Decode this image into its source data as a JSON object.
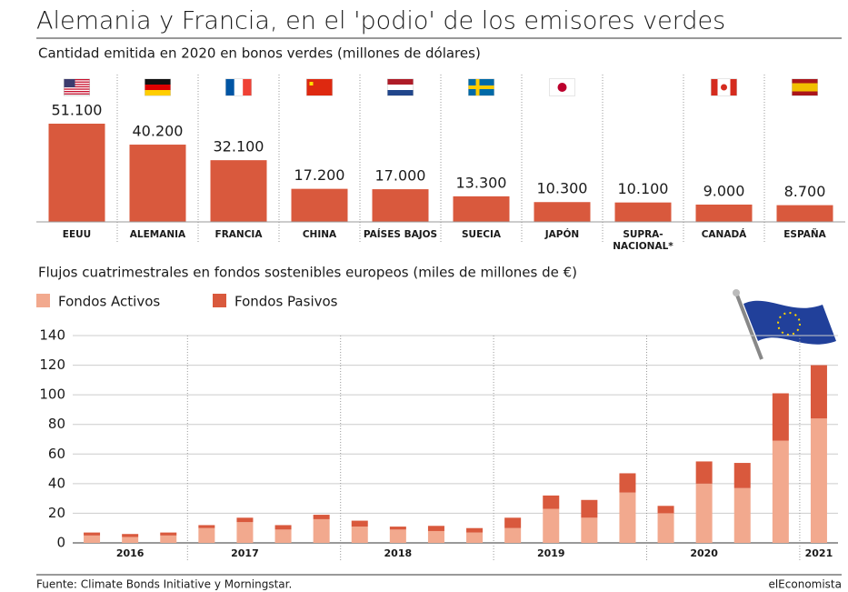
{
  "title": "Alemania y Francia, en el 'podio' de los emisores verdes",
  "footer": {
    "source": "Fuente: Climate Bonds Initiative y Morningstar.",
    "brand": "elEconomista"
  },
  "chart_data": [
    {
      "type": "bar",
      "title": "Cantidad emitida en 2020 en bonos verdes (millones de dólares)",
      "categories": [
        "EEUU",
        "ALEMANIA",
        "FRANCIA",
        "CHINA",
        "PAÍSES BAJOS",
        "SUECIA",
        "JAPÓN",
        "SUPRA-\nNACIONAL*",
        "CANADÁ",
        "ESPAÑA"
      ],
      "values": [
        51100,
        40200,
        32100,
        17200,
        17000,
        13300,
        10300,
        10100,
        9000,
        8700
      ],
      "value_labels": [
        "51.100",
        "40.200",
        "32.100",
        "17.200",
        "17.000",
        "13.300",
        "10.300",
        "10.100",
        "9.000",
        "8.700"
      ],
      "color": "#d9593d"
    },
    {
      "type": "stacked_bar",
      "title": "Flujos cuatrimestrales en fondos sostenibles europeos (miles de millones de €)",
      "categories": [
        null,
        "2016",
        null,
        null,
        "2017",
        null,
        null,
        null,
        "2018",
        null,
        null,
        null,
        "2019",
        null,
        null,
        null,
        "2020",
        null,
        null,
        "2021"
      ],
      "series": [
        {
          "name": "Fondos Activos",
          "color": "#f2a98e",
          "values": [
            5,
            4,
            5,
            10,
            14,
            9,
            16,
            11,
            9,
            8,
            7,
            10,
            23,
            17,
            34,
            20,
            40,
            37,
            69,
            84
          ]
        },
        {
          "name": "Fondos Pasivos",
          "color": "#d9593d",
          "values": [
            2,
            2,
            2,
            2,
            3,
            3,
            3,
            4,
            2,
            3.5,
            3,
            7,
            9,
            12,
            13,
            5,
            15,
            17,
            32,
            36
          ]
        }
      ],
      "ylim": [
        0,
        140
      ],
      "yticks": [
        0,
        20,
        40,
        60,
        80,
        100,
        120,
        140
      ],
      "grid": true,
      "legend": "top-left"
    }
  ]
}
